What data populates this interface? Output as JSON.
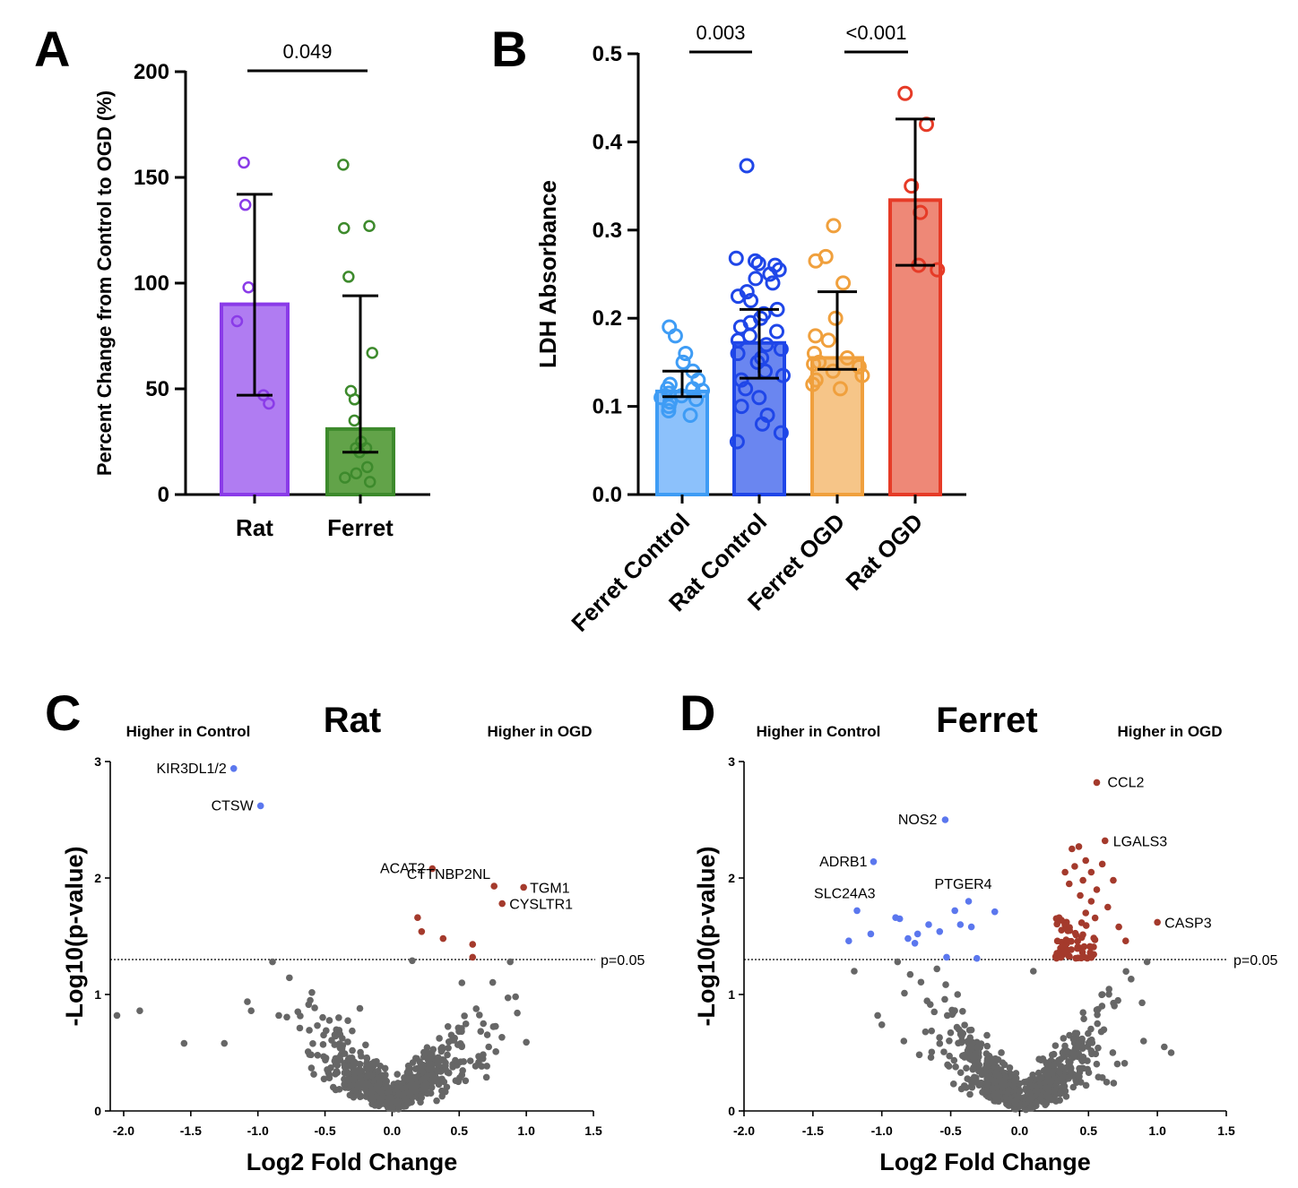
{
  "chart_data": [
    {
      "type": "bar",
      "panel": "A",
      "ylabel": "Percent Change from Control to OGD (%)",
      "ylim": [
        0,
        200
      ],
      "yticks": [
        0,
        50,
        100,
        150,
        200
      ],
      "categories": [
        "Rat",
        "Ferret"
      ],
      "values": [
        90,
        31
      ],
      "error_low": [
        47,
        20
      ],
      "error_high": [
        142,
        94
      ],
      "colors": {
        "fill": [
          "#b07cf2",
          "#62a349"
        ],
        "edge": [
          "#8a3be8",
          "#3d8a2c"
        ]
      },
      "points": [
        [
          157,
          137,
          98,
          82,
          47,
          43
        ],
        [
          156,
          127,
          126,
          103,
          67,
          49,
          45,
          35,
          25,
          22,
          22,
          20,
          13,
          10,
          8,
          6
        ]
      ],
      "significance": [
        {
          "from": 0,
          "to": 1,
          "label": "0.049"
        }
      ]
    },
    {
      "type": "bar",
      "panel": "B",
      "ylabel": "LDH Absorbance",
      "ylim": [
        0,
        0.5
      ],
      "yticks": [
        "0.0",
        "0.1",
        "0.2",
        "0.3",
        "0.4",
        "0.5"
      ],
      "categories": [
        "Ferret Control",
        "Rat Control",
        "Ferret OGD",
        "Rat OGD"
      ],
      "values": [
        0.117,
        0.172,
        0.155,
        0.334
      ],
      "error_low": [
        0.111,
        0.132,
        0.142,
        0.26
      ],
      "error_high": [
        0.14,
        0.21,
        0.23,
        0.426
      ],
      "colors": {
        "fill": [
          "#8cc1fb",
          "#6a86f0",
          "#f6c588",
          "#ee8877"
        ],
        "edge": [
          "#3e9cf5",
          "#1f46e8",
          "#f0a03d",
          "#e63b27"
        ]
      },
      "points": [
        [
          0.19,
          0.18,
          0.16,
          0.15,
          0.14,
          0.13,
          0.125,
          0.12,
          0.12,
          0.118,
          0.115,
          0.112,
          0.11,
          0.108,
          0.105,
          0.1,
          0.095,
          0.09
        ],
        [
          0.373,
          0.268,
          0.265,
          0.262,
          0.26,
          0.255,
          0.25,
          0.245,
          0.24,
          0.23,
          0.225,
          0.22,
          0.21,
          0.205,
          0.2,
          0.195,
          0.19,
          0.185,
          0.18,
          0.175,
          0.17,
          0.165,
          0.16,
          0.155,
          0.15,
          0.14,
          0.135,
          0.13,
          0.12,
          0.11,
          0.1,
          0.09,
          0.08,
          0.07,
          0.06
        ],
        [
          0.305,
          0.27,
          0.265,
          0.24,
          0.2,
          0.18,
          0.175,
          0.16,
          0.155,
          0.15,
          0.148,
          0.145,
          0.14,
          0.135,
          0.13,
          0.125,
          0.12
        ],
        [
          0.455,
          0.42,
          0.35,
          0.32,
          0.26,
          0.255
        ]
      ],
      "significance": [
        {
          "from": 0,
          "to": 1,
          "label": "0.003"
        },
        {
          "from": 2,
          "to": 3,
          "label": "<0.001"
        }
      ]
    },
    {
      "type": "scatter",
      "panel": "C",
      "title": "Rat",
      "xlabel": "Log2 Fold Change",
      "ylabel": "-Log10(p-value)",
      "xlim": [
        -2.1,
        1.5
      ],
      "ylim": [
        0,
        3
      ],
      "xticks": [
        "-2.0",
        "-1.5",
        "-1.0",
        "-0.5",
        "0.0",
        "0.5",
        "1.0",
        "1.5"
      ],
      "yticks": [
        "0",
        "1",
        "2",
        "3"
      ],
      "left_header": "Higher in Control",
      "right_header": "Higher in OGD",
      "threshold_label": "p=0.05",
      "threshold": 1.3,
      "colors": {
        "up": "#a43a2c",
        "down": "#5b77ee",
        "ns": "#666666"
      },
      "labeled_genes": [
        {
          "gene": "KIR3DL1/2",
          "x": -1.18,
          "y": 2.94,
          "dir": "down"
        },
        {
          "gene": "CTSW",
          "x": -0.98,
          "y": 2.62,
          "dir": "down"
        },
        {
          "gene": "ACAT2",
          "x": 0.3,
          "y": 2.08,
          "dir": "up"
        },
        {
          "gene": "CTTNBP2NL",
          "x": 0.76,
          "y": 1.93,
          "dir": "up"
        },
        {
          "gene": "TGM1",
          "x": 0.98,
          "y": 1.92,
          "dir": "up"
        },
        {
          "gene": "CYSLTR1",
          "x": 0.82,
          "y": 1.78,
          "dir": "up"
        }
      ],
      "significant_points": [
        [
          0.19,
          1.66,
          "up"
        ],
        [
          0.22,
          1.54,
          "up"
        ],
        [
          0.38,
          1.48,
          "up"
        ],
        [
          0.6,
          1.43,
          "up"
        ],
        [
          0.6,
          1.32,
          "up"
        ]
      ],
      "outlier_points": [
        [
          -2.05,
          0.82
        ],
        [
          -1.88,
          0.86
        ],
        [
          -1.55,
          0.58
        ],
        [
          -1.25,
          0.58
        ],
        [
          -1.05,
          0.86
        ],
        [
          -0.61,
          0.95
        ],
        [
          -0.24,
          0.88
        ],
        [
          0.15,
          1.29
        ],
        [
          0.52,
          1.1
        ],
        [
          0.68,
          0.75
        ],
        [
          0.72,
          0.55
        ],
        [
          0.88,
          1.28
        ],
        [
          0.92,
          0.98
        ],
        [
          1.0,
          0.59
        ]
      ],
      "cloud_points": 700
    },
    {
      "type": "scatter",
      "panel": "D",
      "title": "Ferret",
      "xlabel": "Log2 Fold Change",
      "ylabel": "-Log10(p-value)",
      "xlim": [
        -2.0,
        1.5
      ],
      "ylim": [
        0,
        3
      ],
      "xticks": [
        "-2.0",
        "-1.5",
        "-1.0",
        "-0.5",
        "0.0",
        "0.5",
        "1.0",
        "1.5"
      ],
      "yticks": [
        "0",
        "1",
        "2",
        "3"
      ],
      "left_header": "Higher in Control",
      "right_header": "Higher in OGD",
      "threshold_label": "p=0.05",
      "threshold": 1.3,
      "colors": {
        "up": "#a43a2c",
        "down": "#5b77ee",
        "ns": "#666666"
      },
      "labeled_genes": [
        {
          "gene": "CCL2",
          "x": 0.56,
          "y": 2.82,
          "dir": "up"
        },
        {
          "gene": "NOS2",
          "x": -0.54,
          "y": 2.5,
          "dir": "down"
        },
        {
          "gene": "LGALS3",
          "x": 0.62,
          "y": 2.32,
          "dir": "up"
        },
        {
          "gene": "ADRB1",
          "x": -1.06,
          "y": 2.14,
          "dir": "down"
        },
        {
          "gene": "PTGER4",
          "x": -0.37,
          "y": 1.8,
          "dir": "down"
        },
        {
          "gene": "SLC24A3",
          "x": -1.18,
          "y": 1.72,
          "dir": "down"
        },
        {
          "gene": "CASP3",
          "x": 1.0,
          "y": 1.62,
          "dir": "up"
        }
      ],
      "significant_points": [
        [
          -1.24,
          1.46,
          "down"
        ],
        [
          -1.08,
          1.52,
          "down"
        ],
        [
          -0.9,
          1.66,
          "down"
        ],
        [
          -0.87,
          1.65,
          "down"
        ],
        [
          -0.81,
          1.48,
          "down"
        ],
        [
          -0.76,
          1.44,
          "down"
        ],
        [
          -0.74,
          1.52,
          "down"
        ],
        [
          -0.66,
          1.6,
          "down"
        ],
        [
          -0.58,
          1.54,
          "down"
        ],
        [
          -0.47,
          1.72,
          "down"
        ],
        [
          -0.43,
          1.6,
          "down"
        ],
        [
          -0.35,
          1.58,
          "down"
        ],
        [
          -0.18,
          1.71,
          "down"
        ],
        [
          -0.53,
          1.32,
          "down"
        ],
        [
          -0.31,
          1.31,
          "down"
        ]
      ],
      "up_cluster": {
        "count": 62,
        "x_range": [
          0.26,
          0.55
        ],
        "y_range": [
          1.31,
          1.66
        ]
      },
      "up_extra": [
        [
          0.38,
          2.25
        ],
        [
          0.43,
          2.27
        ],
        [
          0.48,
          2.15
        ],
        [
          0.4,
          2.1
        ],
        [
          0.52,
          2.05
        ],
        [
          0.33,
          2.05
        ],
        [
          0.6,
          2.12
        ],
        [
          0.46,
          1.98
        ],
        [
          0.36,
          1.95
        ],
        [
          0.56,
          1.9
        ],
        [
          0.68,
          1.98
        ],
        [
          0.44,
          1.85
        ],
        [
          0.52,
          1.8
        ],
        [
          0.64,
          1.75
        ],
        [
          0.72,
          1.58
        ],
        [
          0.77,
          1.46
        ],
        [
          0.48,
          1.7
        ]
      ],
      "outlier_points": [
        [
          -1.2,
          1.2
        ],
        [
          -1.03,
          0.82
        ],
        [
          -1.0,
          0.74
        ],
        [
          -0.84,
          0.6
        ],
        [
          -0.6,
          1.22
        ],
        [
          -0.45,
          1.0
        ],
        [
          0.1,
          1.2
        ],
        [
          0.6,
          1.0
        ],
        [
          0.9,
          0.6
        ],
        [
          1.05,
          0.55
        ],
        [
          1.1,
          0.5
        ]
      ],
      "cloud_points": 780
    }
  ]
}
